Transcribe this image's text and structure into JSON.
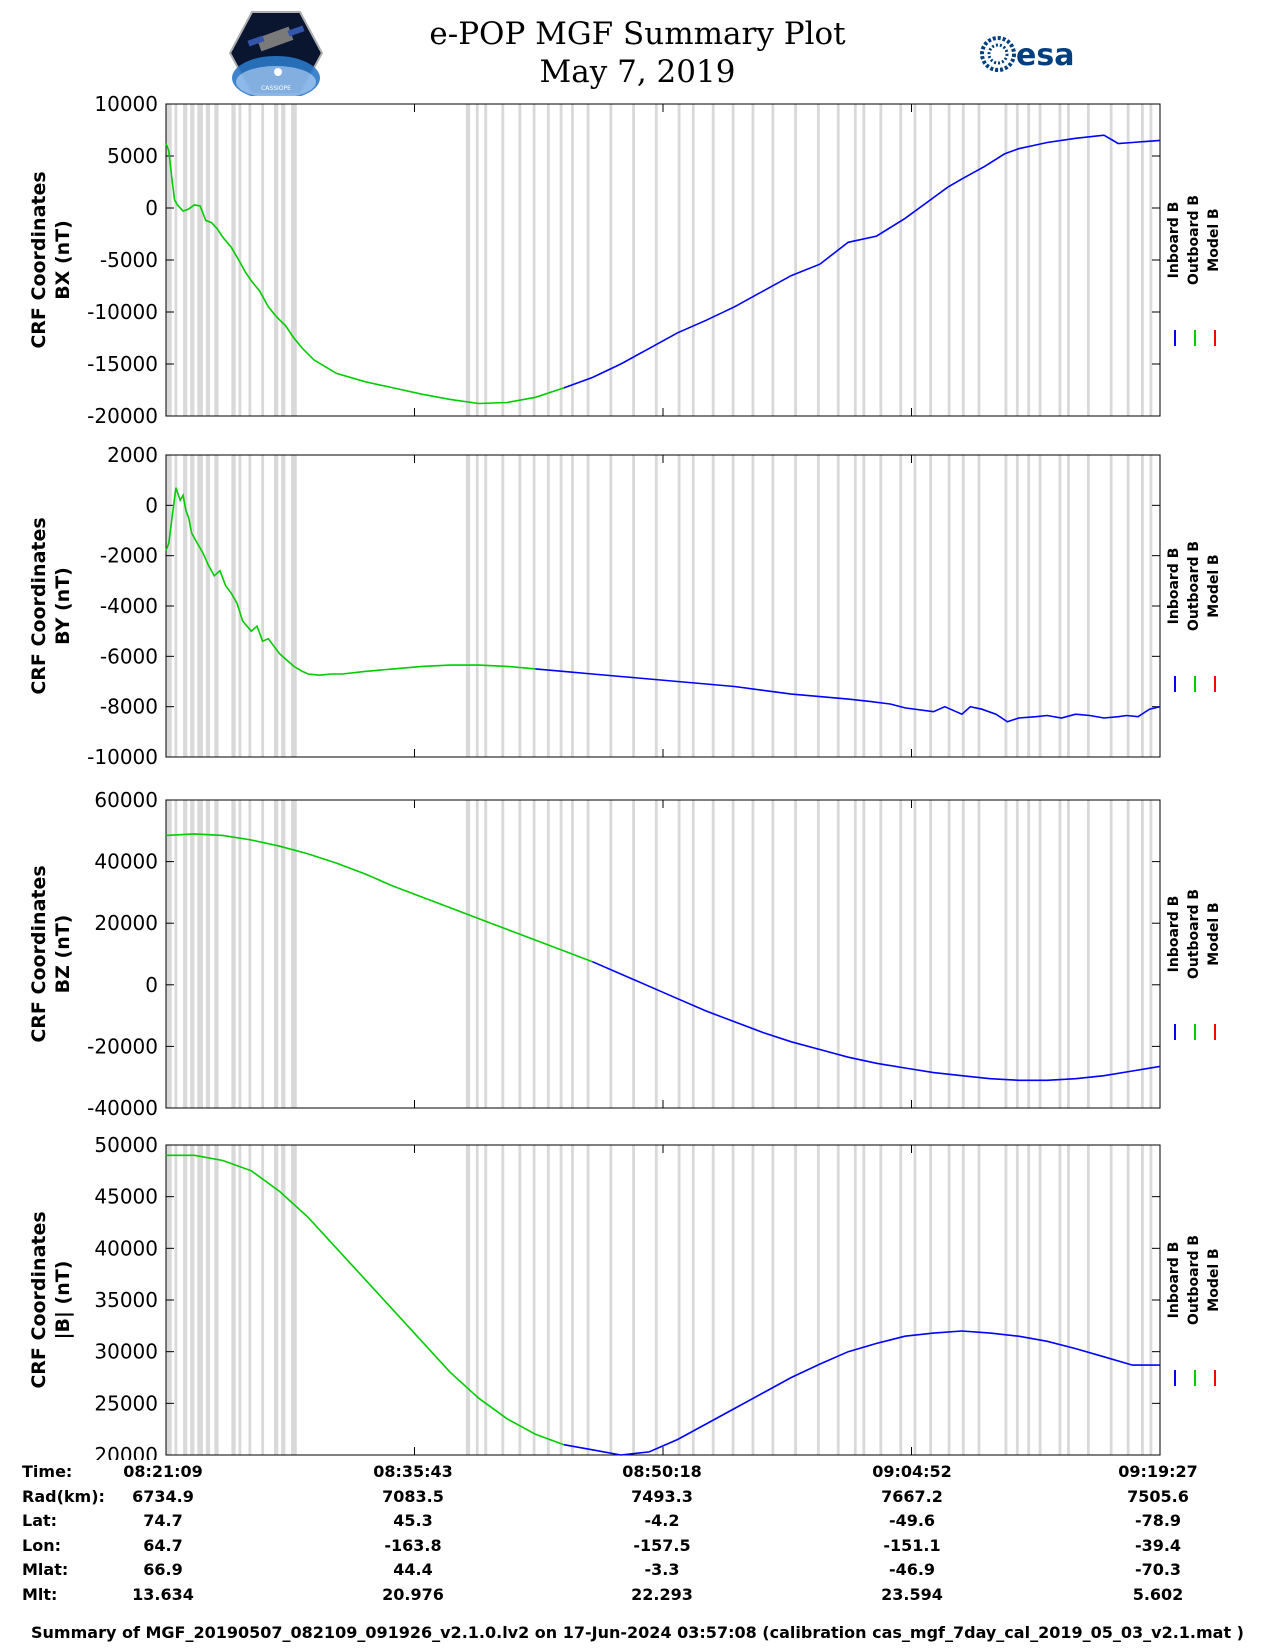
{
  "header": {
    "title_line1": "e-POP MGF Summary Plot",
    "title_line2": "May 7, 2019",
    "left_logo": "cassiope-mission-logo",
    "left_logo_caption": "CASSIOPE",
    "right_logo": "esa"
  },
  "colors": {
    "inboard": "#0000ff",
    "outboard": "#00cc00",
    "model": "#ff0000",
    "gap_shading": "#d9d9d9"
  },
  "legend": {
    "items": [
      "Inboard B",
      "Outboard B",
      "Model B"
    ]
  },
  "chart_data": {
    "type": "line",
    "time_range_seconds": [
      0,
      3497
    ],
    "gray_band_intervals_seconds": [
      [
        0,
        20
      ],
      [
        30,
        40
      ],
      [
        60,
        75
      ],
      [
        85,
        100
      ],
      [
        110,
        130
      ],
      [
        140,
        155
      ],
      [
        170,
        185
      ],
      [
        230,
        245
      ],
      [
        255,
        265
      ],
      [
        290,
        300
      ],
      [
        335,
        345
      ],
      [
        380,
        395
      ],
      [
        405,
        420
      ],
      [
        440,
        460
      ],
      [
        1055,
        1070
      ],
      [
        1090,
        1100
      ],
      [
        1120,
        1130
      ],
      [
        1180,
        1190
      ],
      [
        1240,
        1250
      ],
      [
        1290,
        1300
      ],
      [
        1340,
        1350
      ],
      [
        1385,
        1395
      ],
      [
        1425,
        1435
      ],
      [
        1480,
        1490
      ],
      [
        1560,
        1570
      ],
      [
        1640,
        1650
      ],
      [
        1720,
        1730
      ],
      [
        1800,
        1810
      ],
      [
        1850,
        1860
      ],
      [
        1920,
        1930
      ],
      [
        1990,
        2000
      ],
      [
        2060,
        2070
      ],
      [
        2130,
        2140
      ],
      [
        2210,
        2220
      ],
      [
        2290,
        2300
      ],
      [
        2360,
        2370
      ],
      [
        2420,
        2430
      ],
      [
        2450,
        2460
      ],
      [
        2510,
        2520
      ],
      [
        2580,
        2590
      ],
      [
        2630,
        2640
      ],
      [
        2685,
        2695
      ],
      [
        2750,
        2760
      ],
      [
        2800,
        2810
      ],
      [
        2855,
        2865
      ],
      [
        2950,
        2960
      ],
      [
        2990,
        3000
      ],
      [
        3030,
        3040
      ],
      [
        3070,
        3080
      ],
      [
        3140,
        3150
      ],
      [
        3170,
        3180
      ],
      [
        3240,
        3250
      ],
      [
        3320,
        3330
      ],
      [
        3380,
        3390
      ],
      [
        3430,
        3440
      ],
      [
        3460,
        3470
      ]
    ],
    "panels": [
      {
        "key": "bx",
        "ylabel_line1": "CRF Coordinates",
        "ylabel_line2": "BX (nT)",
        "ylim": [
          -20000,
          10000
        ],
        "yticks": [
          -20000,
          -15000,
          -10000,
          -5000,
          0,
          5000,
          10000
        ],
        "ytick_labels": [
          "-20000",
          "-15000",
          "-10000",
          "-5000",
          "0",
          "5000",
          "10000"
        ],
        "outboard_end_seconds": 1450,
        "x": [
          0,
          10,
          20,
          30,
          40,
          60,
          80,
          100,
          120,
          140,
          160,
          180,
          200,
          230,
          260,
          280,
          300,
          330,
          360,
          390,
          420,
          450,
          480,
          520,
          600,
          700,
          800,
          900,
          1000,
          1100,
          1200,
          1300,
          1400,
          1500,
          1600,
          1700,
          1800,
          1900,
          2000,
          2100,
          2200,
          2300,
          2400,
          2500,
          2600,
          2700,
          2750,
          2800,
          2880,
          2950,
          3000,
          3050,
          3100,
          3200,
          3300,
          3350,
          3400,
          3450,
          3497
        ],
        "y": [
          6200,
          5500,
          3000,
          800,
          300,
          -300,
          -100,
          300,
          200,
          -1200,
          -1400,
          -2000,
          -2800,
          -3800,
          -5200,
          -6200,
          -7000,
          -8000,
          -9500,
          -10500,
          -11300,
          -12500,
          -13500,
          -14600,
          -15900,
          -16700,
          -17300,
          -17900,
          -18400,
          -18800,
          -18700,
          -18200,
          -17300,
          -16300,
          -15000,
          -13500,
          -12000,
          -10800,
          -9500,
          -8000,
          -6500,
          -5400,
          -3300,
          -2700,
          -1000,
          1000,
          2000,
          2800,
          4000,
          5200,
          5700,
          6000,
          6300,
          6700,
          7000,
          6200,
          6300,
          6400,
          6500
        ]
      },
      {
        "key": "by",
        "ylabel_line1": "CRF Coordinates",
        "ylabel_line2": "BY (nT)",
        "ylim": [
          -10000,
          2000
        ],
        "yticks": [
          -10000,
          -8000,
          -6000,
          -4000,
          -2000,
          0,
          2000
        ],
        "ytick_labels": [
          "-10000",
          "-8000",
          "-6000",
          "-4000",
          "-2000",
          "0",
          "2000"
        ],
        "outboard_end_seconds": 1300,
        "x": [
          0,
          10,
          20,
          35,
          50,
          60,
          70,
          80,
          90,
          110,
          130,
          150,
          170,
          190,
          210,
          230,
          250,
          270,
          300,
          320,
          340,
          360,
          380,
          400,
          420,
          450,
          480,
          500,
          540,
          580,
          620,
          700,
          800,
          900,
          1000,
          1100,
          1200,
          1300,
          1400,
          1500,
          1600,
          1700,
          1800,
          1900,
          2000,
          2100,
          2200,
          2300,
          2400,
          2480,
          2550,
          2600,
          2700,
          2740,
          2800,
          2830,
          2870,
          2920,
          2960,
          3000,
          3060,
          3100,
          3150,
          3200,
          3250,
          3300,
          3350,
          3380,
          3420,
          3460,
          3497
        ],
        "y": [
          -1800,
          -1500,
          -600,
          700,
          200,
          400,
          -200,
          -500,
          -1100,
          -1500,
          -1900,
          -2400,
          -2800,
          -2600,
          -3200,
          -3500,
          -3900,
          -4600,
          -5000,
          -4800,
          -5400,
          -5300,
          -5600,
          -5900,
          -6100,
          -6400,
          -6600,
          -6700,
          -6750,
          -6700,
          -6700,
          -6600,
          -6500,
          -6400,
          -6350,
          -6350,
          -6400,
          -6500,
          -6600,
          -6700,
          -6800,
          -6900,
          -7000,
          -7100,
          -7200,
          -7350,
          -7500,
          -7600,
          -7700,
          -7800,
          -7900,
          -8050,
          -8200,
          -8000,
          -8300,
          -8000,
          -8100,
          -8300,
          -8600,
          -8450,
          -8400,
          -8350,
          -8450,
          -8300,
          -8350,
          -8450,
          -8400,
          -8350,
          -8400,
          -8100,
          -8000
        ]
      },
      {
        "key": "bz",
        "ylabel_line1": "CRF Coordinates",
        "ylabel_line2": "BZ (nT)",
        "ylim": [
          -40000,
          60000
        ],
        "yticks": [
          -40000,
          -20000,
          0,
          20000,
          40000,
          60000
        ],
        "ytick_labels": [
          "-40000",
          "-20000",
          "0",
          "20000",
          "40000",
          "60000"
        ],
        "outboard_end_seconds": 1500,
        "x": [
          0,
          100,
          200,
          300,
          400,
          500,
          600,
          700,
          800,
          900,
          1000,
          1100,
          1200,
          1300,
          1400,
          1500,
          1600,
          1700,
          1800,
          1900,
          2000,
          2100,
          2200,
          2300,
          2400,
          2500,
          2600,
          2700,
          2800,
          2900,
          3000,
          3100,
          3200,
          3300,
          3400,
          3497
        ],
        "y": [
          48500,
          49000,
          48500,
          47000,
          45000,
          42500,
          39500,
          36000,
          32000,
          28500,
          25000,
          21500,
          18000,
          14500,
          11000,
          7500,
          3500,
          -500,
          -4500,
          -8500,
          -12000,
          -15500,
          -18500,
          -21000,
          -23500,
          -25500,
          -27000,
          -28500,
          -29500,
          -30500,
          -31000,
          -31000,
          -30500,
          -29500,
          -28000,
          -26500
        ]
      },
      {
        "key": "bmag",
        "ylabel_line1": "CRF Coordinates",
        "ylabel_line2": "|B| (nT)",
        "ylim": [
          20000,
          50000
        ],
        "yticks": [
          20000,
          25000,
          30000,
          35000,
          40000,
          45000,
          50000
        ],
        "ytick_labels": [
          "20000",
          "25000",
          "30000",
          "35000",
          "40000",
          "45000",
          "50000"
        ],
        "outboard_end_seconds": 1450,
        "x": [
          0,
          100,
          200,
          300,
          400,
          500,
          600,
          700,
          800,
          900,
          1000,
          1100,
          1200,
          1300,
          1400,
          1500,
          1600,
          1700,
          1800,
          1900,
          2000,
          2100,
          2200,
          2300,
          2400,
          2500,
          2600,
          2700,
          2800,
          2900,
          3000,
          3100,
          3200,
          3300,
          3400,
          3497
        ],
        "y": [
          49000,
          49000,
          48500,
          47500,
          45500,
          43000,
          40000,
          37000,
          34000,
          31000,
          28000,
          25500,
          23500,
          22000,
          21000,
          20500,
          20000,
          20300,
          21500,
          23000,
          24500,
          26000,
          27500,
          28800,
          30000,
          30800,
          31500,
          31800,
          32000,
          31800,
          31500,
          31000,
          30300,
          29500,
          28700,
          28700
        ]
      }
    ]
  },
  "time_table": {
    "row_labels": [
      "Time:",
      "Rad(km):",
      "Lat:",
      "Lon:",
      "Mlat:",
      "Mlt:"
    ],
    "columns": [
      [
        "08:21:09",
        "6734.9",
        "74.7",
        "64.7",
        "66.9",
        "13.634"
      ],
      [
        "08:35:43",
        "7083.5",
        "45.3",
        "-163.8",
        "44.4",
        "20.976"
      ],
      [
        "08:50:18",
        "7493.3",
        "-4.2",
        "-157.5",
        "-3.3",
        "22.293"
      ],
      [
        "09:04:52",
        "7667.2",
        "-49.6",
        "-151.1",
        "-46.9",
        "23.594"
      ],
      [
        "09:19:27",
        "7505.6",
        "-78.9",
        "-39.4",
        "-70.3",
        "5.602"
      ]
    ]
  },
  "footer": {
    "text": "Summary of MGF_20190507_082109_091926_v2.1.0.lv2 on 17-Jun-2024 03:57:08 (calibration cas_mgf_7day_cal_2019_05_03_v2.1.mat )"
  }
}
